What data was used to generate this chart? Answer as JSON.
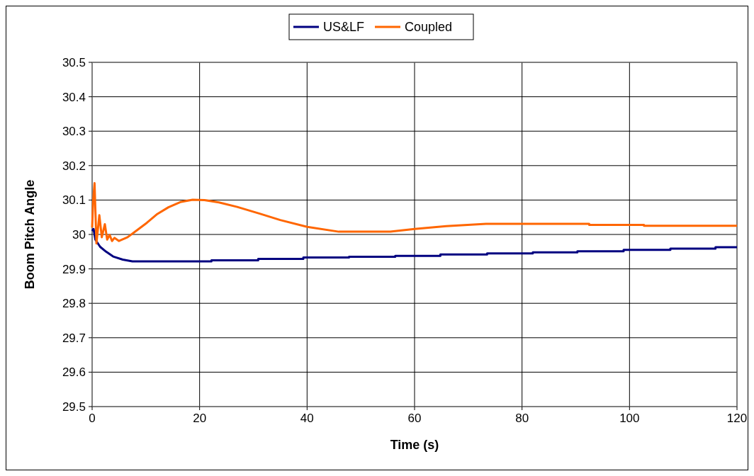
{
  "chart_data": {
    "type": "line",
    "xlabel": "Time (s)",
    "ylabel": "Boom Pitch Angle",
    "xlim": [
      0,
      120
    ],
    "xticks": [
      0,
      20,
      40,
      60,
      80,
      100,
      120
    ],
    "ylim": [
      29.5,
      30.5
    ],
    "yticks": [
      29.5,
      29.6,
      29.7,
      29.8,
      29.9,
      {
        "value": 30,
        "label": "30"
      },
      30.1,
      30.2,
      30.3,
      30.4,
      30.5
    ],
    "grid": true,
    "legend": "top",
    "marker": "none",
    "line_style": "solid",
    "series": [
      {
        "name": "US&LF",
        "color": "#000080",
        "x": [
          0,
          0.27,
          0.6,
          1.5,
          2.6,
          3.9,
          5.7,
          7.5,
          22.2,
          22.2,
          30.9,
          30.9,
          39.3,
          39.3,
          47.8,
          47.8,
          56.4,
          56.4,
          64.8,
          64.8,
          73.5,
          73.5,
          82,
          82,
          90.3,
          90.3,
          98.9,
          98.9,
          107.6,
          107.6,
          116,
          116,
          120
        ],
        "values": [
          30.01,
          30.016,
          29.985,
          29.964,
          29.95,
          29.936,
          29.927,
          29.922,
          29.922,
          29.925,
          29.925,
          29.929,
          29.929,
          29.933,
          29.933,
          29.935,
          29.935,
          29.938,
          29.938,
          29.942,
          29.942,
          29.945,
          29.945,
          29.948,
          29.948,
          29.951,
          29.951,
          29.955,
          29.955,
          29.959,
          29.959,
          29.963,
          29.963
        ]
      },
      {
        "name": "Coupled",
        "color": "#ff6600",
        "x": [
          0,
          0.2,
          0.45,
          0.8,
          1.34,
          1.8,
          2.37,
          2.8,
          3.26,
          3.7,
          4.15,
          5,
          6.6,
          8.4,
          10.2,
          12,
          14.2,
          16.4,
          18.7,
          20.9,
          23.6,
          27,
          31.3,
          35,
          40,
          45.9,
          55.5,
          60,
          65.9,
          73.3,
          92.5,
          92.5,
          102.7,
          102.7,
          120
        ],
        "values": [
          30.02,
          30.1,
          30.149,
          29.974,
          30.056,
          29.992,
          30.03,
          29.985,
          29.999,
          29.981,
          29.99,
          29.981,
          29.992,
          30.013,
          30.034,
          30.058,
          30.079,
          30.094,
          30.101,
          30.1,
          30.093,
          30.08,
          30.06,
          30.042,
          30.022,
          30.008,
          30.008,
          30.016,
          30.024,
          30.031,
          30.031,
          30.028,
          30.028,
          30.025,
          30.025
        ]
      }
    ]
  }
}
